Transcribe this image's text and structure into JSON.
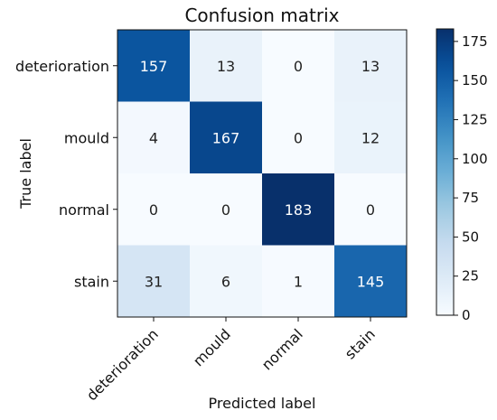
{
  "chart_data": {
    "type": "heatmap",
    "title": "Confusion matrix",
    "xlabel": "Predicted label",
    "ylabel": "True label",
    "x_categories": [
      "deterioration",
      "mould",
      "normal",
      "stain"
    ],
    "y_categories": [
      "deterioration",
      "mould",
      "normal",
      "stain"
    ],
    "values": [
      [
        157,
        13,
        0,
        13
      ],
      [
        4,
        167,
        0,
        12
      ],
      [
        0,
        0,
        183,
        0
      ],
      [
        31,
        6,
        1,
        145
      ]
    ],
    "colormap": "Blues",
    "value_range": [
      0,
      183
    ],
    "colorbar": {
      "ticks": [
        0,
        25,
        50,
        75,
        100,
        125,
        150,
        175
      ]
    },
    "grid": false,
    "colors": {
      "low": "#f7fbff",
      "high": "#08306b",
      "text_on_light": "#222222",
      "text_on_dark": "#ffffff"
    }
  }
}
